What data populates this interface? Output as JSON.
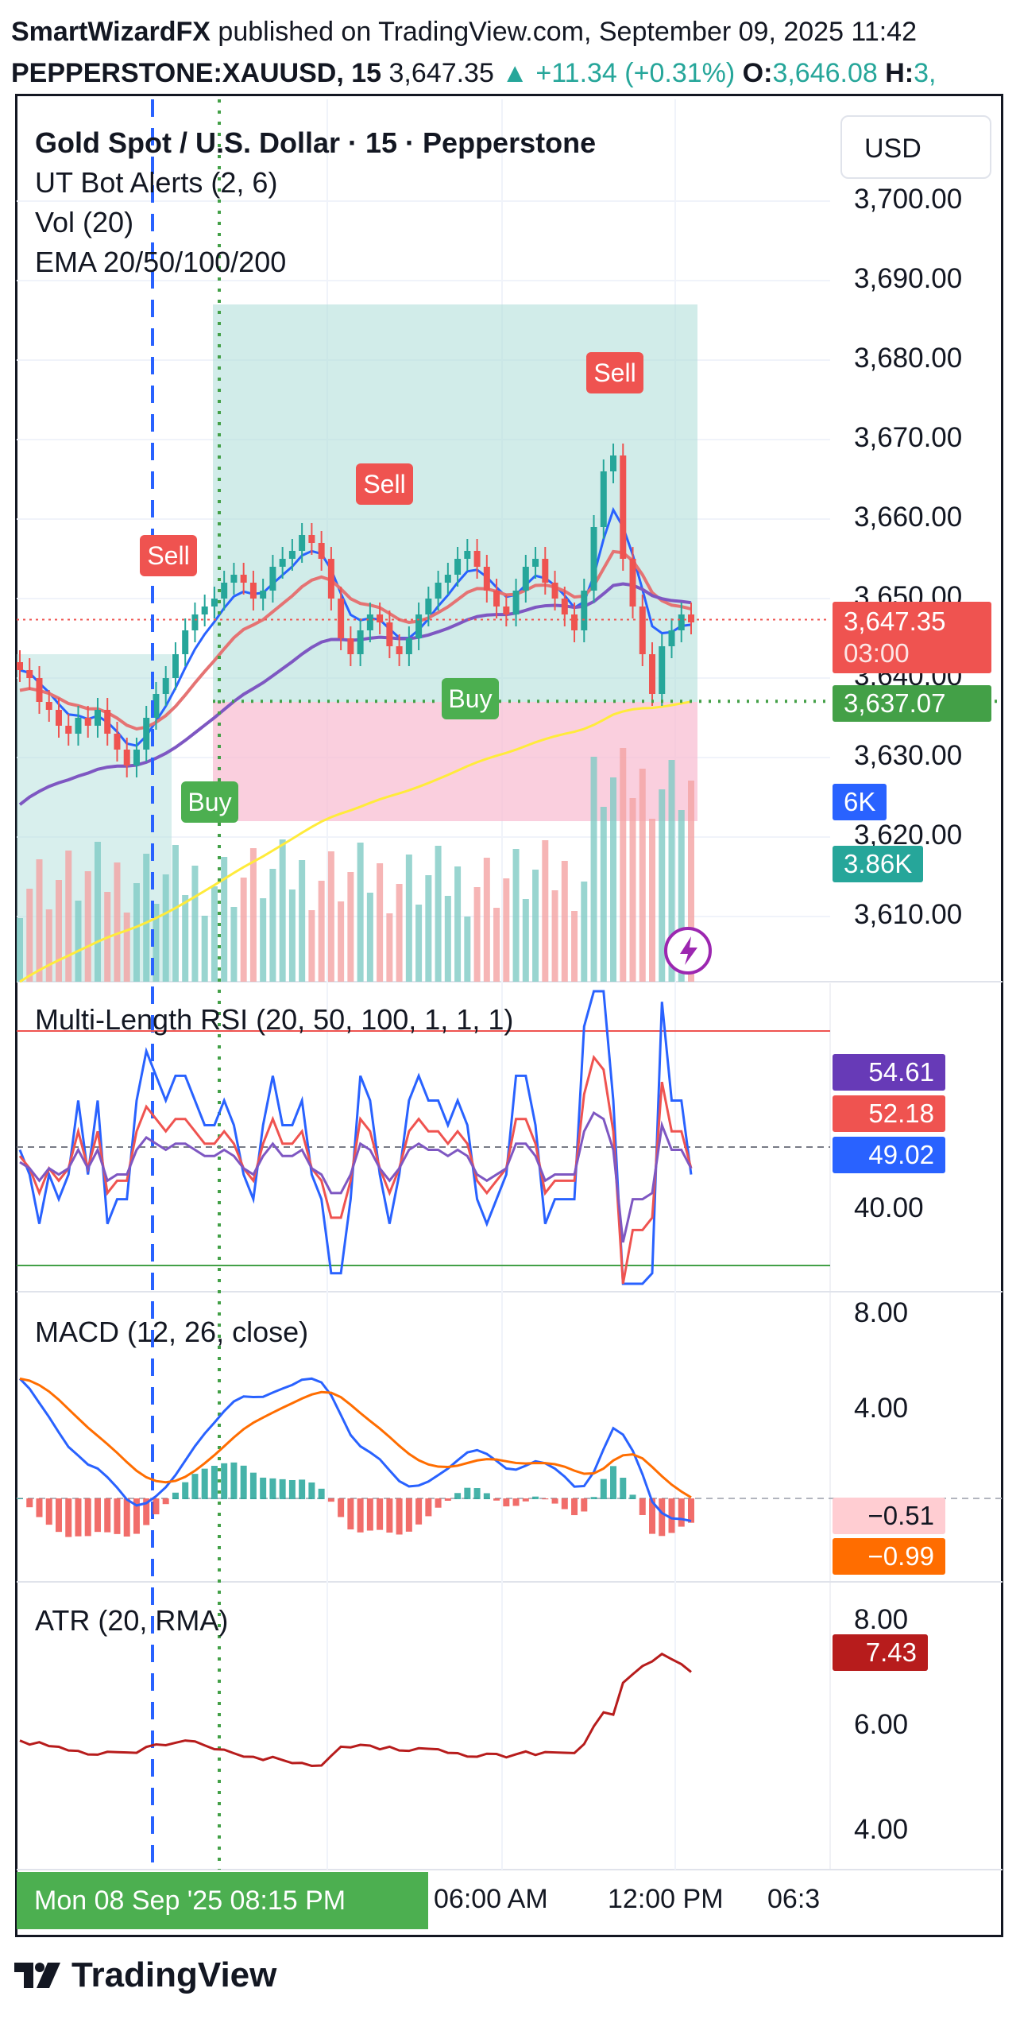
{
  "header": {
    "author": "SmartWizardFX",
    "published": "published on TradingView.com, September 09, 2025 11:42",
    "symbol": "PEPPERSTONE:XAUUSD, 15",
    "last": "3,647.35",
    "change": "▲ +11.34 (+0.31%)",
    "o_label": "O:",
    "o_value": "3,646.08",
    "h_label": "H:",
    "h_value": "3,"
  },
  "legend": {
    "title": "Gold Spot / U.S. Dollar · 15 · Pepperstone",
    "ind1": "UT Bot Alerts (2, 6)",
    "ind2": "Vol (20)",
    "ind3": "EMA 20/50/100/200"
  },
  "currency": "USD",
  "price_scale": [
    "3,700.00",
    "3,690.00",
    "3,680.00",
    "3,670.00",
    "3,660.00",
    "3,650.00",
    "3,640.00",
    "3,630.00",
    "3,620.00",
    "3,610.00"
  ],
  "badges": {
    "price": "3,647.35",
    "countdown": "03:00",
    "level": "3,637.07",
    "vol_a": "6K",
    "vol_b": "3.86K",
    "rsi_a": "54.61",
    "rsi_b": "52.18",
    "rsi_c": "49.02",
    "macd_a": "−0.51",
    "macd_b": "−0.99",
    "atr": "7.43"
  },
  "signals": {
    "sell": "Sell",
    "buy": "Buy"
  },
  "panes": {
    "rsi": {
      "title": "Multi-Length RSI (20, 50, 100, 1, 1, 1)",
      "scale": [
        "40.00"
      ]
    },
    "macd": {
      "title": "MACD (12, 26, close)",
      "scale": [
        "8.00",
        "4.00"
      ]
    },
    "atr": {
      "title": "ATR (20, RMA)",
      "scale": [
        "8.00",
        "6.00",
        "4.00"
      ]
    }
  },
  "time_axis": {
    "crosshair": "Mon 08 Sep '25   08:15 PM",
    "labels": [
      "06:00 AM",
      "12:00 PM",
      "06:3"
    ]
  },
  "footer": {
    "brand": "TradingView"
  },
  "colors": {
    "up": "#26a69a",
    "down": "#ef5350",
    "ema20": "#2962ff",
    "ema50": "#e57373",
    "ema100": "#7e57c2",
    "ema200": "#ffeb3b",
    "green_zone": "#b2dfdb",
    "red_zone": "#f8bbd0"
  },
  "chart_data": {
    "type": "candlestick",
    "title": "Gold Spot / U.S. Dollar · 15 · Pepperstone",
    "ylim": [
      3603,
      3705
    ],
    "close_series": [
      3641,
      3640,
      3637,
      3636,
      3634,
      3633,
      3635,
      3634,
      3636,
      3633,
      3631,
      3629,
      3631,
      3635,
      3638,
      3640,
      3643,
      3646,
      3648,
      3649,
      3650,
      3652,
      3653,
      3652,
      3650,
      3651,
      3654,
      3655,
      3656,
      3658,
      3657,
      3655,
      3650,
      3645,
      3643,
      3646,
      3648,
      3647,
      3644,
      3643,
      3645,
      3648,
      3650,
      3652,
      3653,
      3655,
      3656,
      3654,
      3651,
      3649,
      3648,
      3651,
      3654,
      3655,
      3652,
      3650,
      3648,
      3646,
      3651,
      3659,
      3666,
      3668,
      3655,
      3649,
      3643,
      3638,
      3644,
      3646,
      3648,
      3647
    ],
    "last_price": 3647.35,
    "level": 3637.07,
    "signals": [
      {
        "type": "Sell",
        "price": 3650
      },
      {
        "type": "Buy",
        "price": 3630
      },
      {
        "type": "Sell",
        "price": 3659
      },
      {
        "type": "Buy",
        "price": 3643
      },
      {
        "type": "Sell",
        "price": 3673
      }
    ],
    "rsi": {
      "values": [
        54.61,
        52.18,
        49.02
      ]
    },
    "macd": {
      "values": [
        -0.51,
        -0.99
      ]
    },
    "atr": {
      "value": 7.43
    }
  }
}
